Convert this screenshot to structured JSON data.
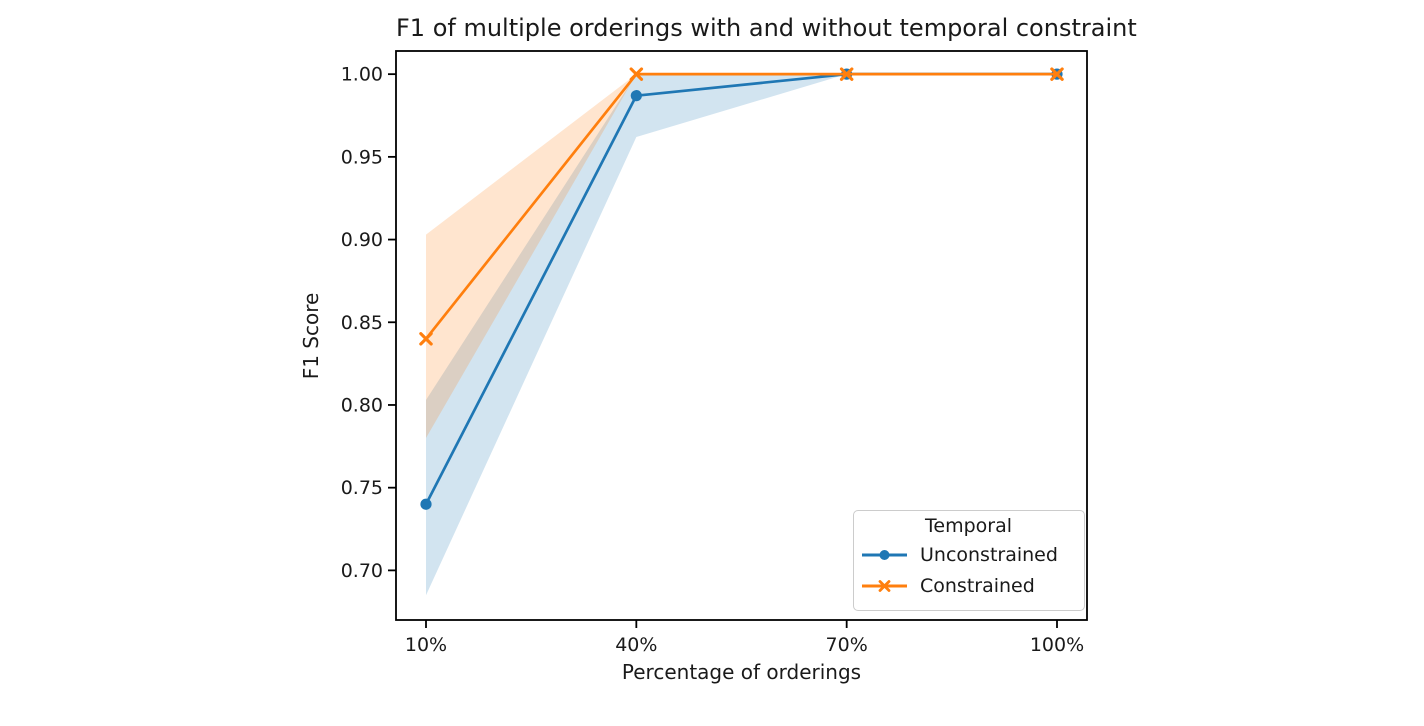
{
  "chart_data": {
    "type": "line",
    "title": "F1 of multiple orderings with and without temporal constraint",
    "xlabel": "Percentage of orderings",
    "ylabel": "F1 Score",
    "x_values": [
      10,
      40,
      70,
      100
    ],
    "x_tick_labels": [
      "10%",
      "40%",
      "70%",
      "100%"
    ],
    "y_tick_values": [
      0.7,
      0.75,
      0.8,
      0.85,
      0.9,
      0.95,
      1.0
    ],
    "y_tick_labels": [
      "0.70",
      "0.75",
      "0.80",
      "0.85",
      "0.90",
      "0.95",
      "1.00"
    ],
    "ylim": [
      0.67,
      1.014
    ],
    "grid": false,
    "legend": {
      "title": "Temporal",
      "position": "lower right"
    },
    "series": [
      {
        "name": "Unconstrained",
        "color": "#1f77b4",
        "marker": "circle",
        "values": [
          0.74,
          0.987,
          1.0,
          1.0
        ],
        "band_lower": [
          0.685,
          0.962,
          1.0,
          1.0
        ],
        "band_upper": [
          0.803,
          1.0,
          1.0,
          1.0
        ],
        "band_alpha": 0.2
      },
      {
        "name": "Constrained",
        "color": "#ff7f0e",
        "marker": "x",
        "values": [
          0.84,
          1.0,
          1.0,
          1.0
        ],
        "band_lower": [
          0.78,
          1.0,
          1.0,
          1.0
        ],
        "band_upper": [
          0.903,
          1.0,
          1.0,
          1.0
        ],
        "band_alpha": 0.2
      }
    ],
    "colors": {
      "text": "#1a1a1a",
      "axis": "#000000",
      "legend_border": "#cccccc",
      "background": "#ffffff"
    }
  }
}
